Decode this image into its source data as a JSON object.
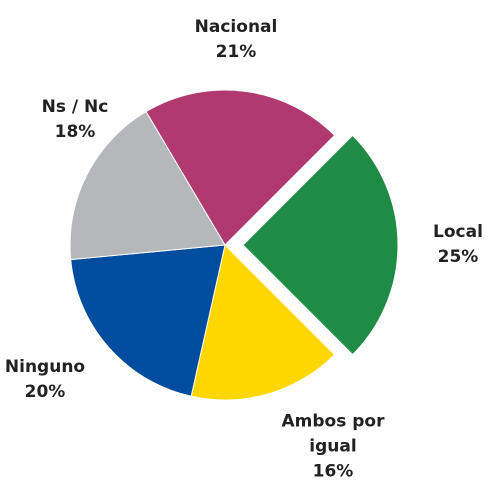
{
  "chart_data": {
    "type": "pie",
    "categories": [
      "Local",
      "Ambos por igual",
      "Ninguno",
      "Ns / Nc",
      "Nacional"
    ],
    "values": [
      25,
      16,
      20,
      18,
      21
    ],
    "value_labels": [
      "25%",
      "16%",
      "20%",
      "18%",
      "21%"
    ],
    "colors": [
      "#1e8c45",
      "#ffd700",
      "#004c9e",
      "#b5b8bb",
      "#b03a70"
    ],
    "explode": [
      true,
      false,
      false,
      false,
      false
    ]
  }
}
